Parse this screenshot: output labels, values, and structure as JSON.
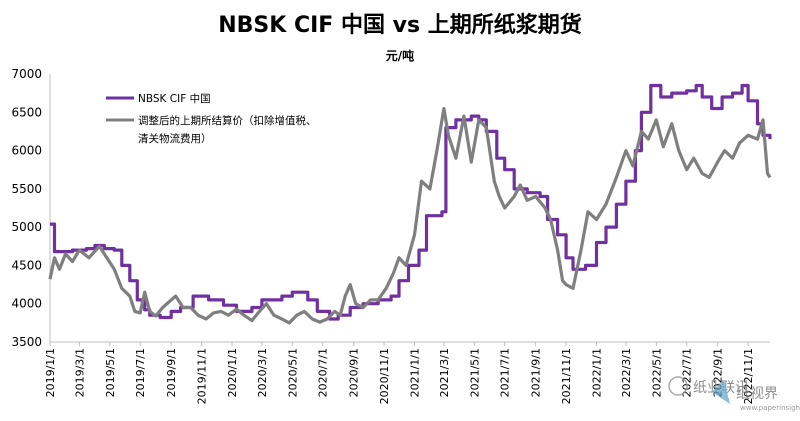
{
  "chart_data": {
    "type": "line",
    "title": "NBSK CIF 中国 vs 上期所纸浆期货",
    "unit_label": "元/吨",
    "ylim": [
      3500,
      7000
    ],
    "y_ticks": [
      3500,
      4000,
      4500,
      5000,
      5500,
      6000,
      6500,
      7000
    ],
    "x_ticks": [
      "2019/1/1",
      "2019/3/1",
      "2019/5/1",
      "2019/7/1",
      "2019/9/1",
      "2019/11/1",
      "2020/1/1",
      "2020/3/1",
      "2020/5/1",
      "2020/7/1",
      "2020/9/1",
      "2020/11/1",
      "2021/1/1",
      "2021/3/1",
      "2021/5/1",
      "2021/7/1",
      "2021/9/1",
      "2021/11/1",
      "2022/1/1",
      "2022/3/1",
      "2022/5/1",
      "2022/7/1",
      "2022/9/1",
      "2022/11/1"
    ],
    "x_range": [
      "2019/1/1",
      "2022/12/15"
    ],
    "grid": false,
    "legend_position": "top-left",
    "series": [
      {
        "name": "NBSK CIF 中国",
        "color": "#7030a0",
        "style": "step",
        "points": [
          [
            "2019/1/1",
            5040
          ],
          [
            "2019/1/10",
            4680
          ],
          [
            "2019/2/15",
            4700
          ],
          [
            "2019/3/15",
            4720
          ],
          [
            "2019/4/1",
            4760
          ],
          [
            "2019/4/20",
            4720
          ],
          [
            "2019/5/10",
            4700
          ],
          [
            "2019/5/25",
            4500
          ],
          [
            "2019/6/10",
            4300
          ],
          [
            "2019/6/25",
            4050
          ],
          [
            "2019/7/10",
            3920
          ],
          [
            "2019/7/20",
            3850
          ],
          [
            "2019/8/10",
            3820
          ],
          [
            "2019/9/1",
            3900
          ],
          [
            "2019/9/20",
            3950
          ],
          [
            "2019/10/15",
            4100
          ],
          [
            "2019/11/15",
            4050
          ],
          [
            "2019/12/15",
            3980
          ],
          [
            "2020/1/10",
            3900
          ],
          [
            "2020/2/10",
            3950
          ],
          [
            "2020/3/1",
            4050
          ],
          [
            "2020/4/10",
            4100
          ],
          [
            "2020/5/1",
            4150
          ],
          [
            "2020/6/1",
            4050
          ],
          [
            "2020/6/20",
            3900
          ],
          [
            "2020/7/15",
            3800
          ],
          [
            "2020/8/1",
            3850
          ],
          [
            "2020/8/25",
            3950
          ],
          [
            "2020/9/20",
            4000
          ],
          [
            "2020/10/20",
            4050
          ],
          [
            "2020/11/15",
            4100
          ],
          [
            "2020/12/1",
            4300
          ],
          [
            "2020/12/20",
            4500
          ],
          [
            "2021/1/10",
            4700
          ],
          [
            "2021/1/25",
            5150
          ],
          [
            "2021/2/25",
            5200
          ],
          [
            "2021/3/5",
            6300
          ],
          [
            "2021/3/25",
            6400
          ],
          [
            "2021/4/25",
            6450
          ],
          [
            "2021/5/10",
            6400
          ],
          [
            "2021/5/25",
            6250
          ],
          [
            "2021/6/15",
            5900
          ],
          [
            "2021/7/1",
            5750
          ],
          [
            "2021/7/20",
            5500
          ],
          [
            "2021/8/15",
            5450
          ],
          [
            "2021/9/10",
            5400
          ],
          [
            "2021/9/25",
            5100
          ],
          [
            "2021/10/15",
            4900
          ],
          [
            "2021/11/1",
            4600
          ],
          [
            "2021/11/15",
            4450
          ],
          [
            "2021/12/10",
            4500
          ],
          [
            "2022/1/1",
            4800
          ],
          [
            "2022/1/20",
            5000
          ],
          [
            "2022/2/10",
            5300
          ],
          [
            "2022/3/1",
            5600
          ],
          [
            "2022/3/20",
            6000
          ],
          [
            "2022/4/1",
            6500
          ],
          [
            "2022/4/20",
            6850
          ],
          [
            "2022/5/10",
            6700
          ],
          [
            "2022/6/1",
            6750
          ],
          [
            "2022/7/1",
            6780
          ],
          [
            "2022/7/20",
            6850
          ],
          [
            "2022/8/1",
            6700
          ],
          [
            "2022/8/20",
            6550
          ],
          [
            "2022/9/10",
            6700
          ],
          [
            "2022/10/1",
            6750
          ],
          [
            "2022/10/20",
            6850
          ],
          [
            "2022/11/1",
            6650
          ],
          [
            "2022/11/20",
            6350
          ],
          [
            "2022/12/1",
            6200
          ],
          [
            "2022/12/15",
            6150
          ]
        ]
      },
      {
        "name": "调整后的上期所结算价（扣除增值税、清关物流费用）",
        "color": "#7f7f7f",
        "style": "line",
        "points": [
          [
            "2019/1/1",
            4320
          ],
          [
            "2019/1/10",
            4600
          ],
          [
            "2019/1/20",
            4450
          ],
          [
            "2019/2/1",
            4650
          ],
          [
            "2019/2/15",
            4550
          ],
          [
            "2019/3/1",
            4700
          ],
          [
            "2019/3/20",
            4600
          ],
          [
            "2019/4/10",
            4750
          ],
          [
            "2019/4/25",
            4600
          ],
          [
            "2019/5/10",
            4450
          ],
          [
            "2019/5/25",
            4200
          ],
          [
            "2019/6/10",
            4100
          ],
          [
            "2019/6/20",
            3900
          ],
          [
            "2019/7/1",
            3880
          ],
          [
            "2019/7/10",
            4150
          ],
          [
            "2019/7/20",
            3900
          ],
          [
            "2019/8/1",
            3840
          ],
          [
            "2019/8/15",
            3950
          ],
          [
            "2019/9/1",
            4050
          ],
          [
            "2019/9/10",
            4100
          ],
          [
            "2019/9/25",
            3950
          ],
          [
            "2019/10/10",
            3950
          ],
          [
            "2019/10/25",
            3850
          ],
          [
            "2019/11/10",
            3800
          ],
          [
            "2019/11/25",
            3880
          ],
          [
            "2019/12/10",
            3900
          ],
          [
            "2019/12/25",
            3850
          ],
          [
            "2020/1/10",
            3930
          ],
          [
            "2020/1/25",
            3850
          ],
          [
            "2020/2/10",
            3780
          ],
          [
            "2020/2/25",
            3900
          ],
          [
            "2020/3/10",
            4000
          ],
          [
            "2020/3/25",
            3850
          ],
          [
            "2020/4/10",
            3800
          ],
          [
            "2020/4/25",
            3750
          ],
          [
            "2020/5/10",
            3850
          ],
          [
            "2020/5/25",
            3900
          ],
          [
            "2020/6/10",
            3800
          ],
          [
            "2020/6/25",
            3760
          ],
          [
            "2020/7/10",
            3800
          ],
          [
            "2020/7/25",
            3900
          ],
          [
            "2020/8/5",
            3850
          ],
          [
            "2020/8/15",
            4100
          ],
          [
            "2020/8/25",
            4250
          ],
          [
            "2020/9/5",
            4000
          ],
          [
            "2020/9/20",
            3950
          ],
          [
            "2020/10/5",
            4050
          ],
          [
            "2020/10/20",
            4050
          ],
          [
            "2020/11/5",
            4200
          ],
          [
            "2020/11/20",
            4400
          ],
          [
            "2020/12/1",
            4600
          ],
          [
            "2020/12/15",
            4500
          ],
          [
            "2021/1/1",
            4900
          ],
          [
            "2021/1/15",
            5600
          ],
          [
            "2021/2/1",
            5500
          ],
          [
            "2021/2/15",
            6000
          ],
          [
            "2021/3/1",
            6550
          ],
          [
            "2021/3/10",
            6200
          ],
          [
            "2021/3/25",
            5900
          ],
          [
            "2021/4/10",
            6450
          ],
          [
            "2021/4/25",
            5850
          ],
          [
            "2021/5/10",
            6400
          ],
          [
            "2021/5/25",
            6300
          ],
          [
            "2021/6/10",
            5600
          ],
          [
            "2021/6/20",
            5400
          ],
          [
            "2021/7/1",
            5250
          ],
          [
            "2021/7/20",
            5400
          ],
          [
            "2021/8/1",
            5550
          ],
          [
            "2021/8/15",
            5350
          ],
          [
            "2021/9/1",
            5400
          ],
          [
            "2021/9/20",
            5250
          ],
          [
            "2021/10/1",
            5100
          ],
          [
            "2021/10/15",
            4700
          ],
          [
            "2021/10/25",
            4300
          ],
          [
            "2021/11/1",
            4250
          ],
          [
            "2021/11/15",
            4200
          ],
          [
            "2021/12/1",
            4700
          ],
          [
            "2021/12/15",
            5200
          ],
          [
            "2022/1/1",
            5100
          ],
          [
            "2022/1/20",
            5300
          ],
          [
            "2022/2/10",
            5650
          ],
          [
            "2022/3/1",
            6000
          ],
          [
            "2022/3/15",
            5800
          ],
          [
            "2022/4/1",
            6250
          ],
          [
            "2022/4/15",
            6150
          ],
          [
            "2022/5/1",
            6400
          ],
          [
            "2022/5/15",
            6050
          ],
          [
            "2022/6/1",
            6350
          ],
          [
            "2022/6/15",
            6000
          ],
          [
            "2022/7/1",
            5750
          ],
          [
            "2022/7/15",
            5900
          ],
          [
            "2022/8/1",
            5700
          ],
          [
            "2022/8/15",
            5650
          ],
          [
            "2022/9/1",
            5850
          ],
          [
            "2022/9/15",
            6000
          ],
          [
            "2022/10/1",
            5900
          ],
          [
            "2022/10/15",
            6100
          ],
          [
            "2022/11/1",
            6200
          ],
          [
            "2022/11/20",
            6150
          ],
          [
            "2022/12/1",
            6400
          ],
          [
            "2022/12/10",
            5700
          ],
          [
            "2022/12/15",
            5650
          ]
        ]
      }
    ],
    "watermark": {
      "text1": "纸业联讯",
      "text2": "纸视界",
      "url": "www.paperinsight.net"
    }
  }
}
